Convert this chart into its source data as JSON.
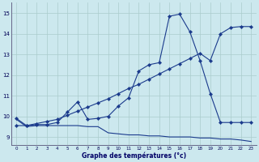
{
  "xlabel": "Graphe des températures (°c)",
  "bg_color": "#cce8ee",
  "grid_color": "#aacccc",
  "line_color": "#1a3a8c",
  "xlim_min": -0.5,
  "xlim_max": 23.5,
  "ylim_min": 8.6,
  "ylim_max": 15.5,
  "yticks": [
    9,
    10,
    11,
    12,
    13,
    14,
    15
  ],
  "xticks": [
    0,
    1,
    2,
    3,
    4,
    5,
    6,
    7,
    8,
    9,
    10,
    11,
    12,
    13,
    14,
    15,
    16,
    17,
    18,
    19,
    20,
    21,
    22,
    23
  ],
  "s1_x": [
    0,
    1,
    2,
    3,
    4,
    5,
    6,
    7,
    8,
    9,
    10,
    11,
    12,
    13,
    14,
    15,
    16,
    17,
    18,
    19,
    20,
    21,
    22,
    23
  ],
  "s1_y": [
    9.9,
    9.55,
    9.6,
    9.6,
    9.7,
    10.2,
    10.7,
    9.85,
    9.9,
    10.0,
    10.5,
    10.9,
    12.2,
    12.5,
    12.6,
    14.85,
    14.95,
    14.1,
    12.7,
    11.1,
    9.7,
    9.7,
    9.7,
    9.7
  ],
  "s2_x": [
    0,
    1,
    2,
    3,
    4,
    5,
    6,
    7,
    8,
    9,
    10,
    11,
    12,
    13,
    14,
    15,
    16,
    17,
    18,
    19,
    20,
    21,
    22,
    23
  ],
  "s2_y": [
    9.55,
    9.55,
    9.65,
    9.75,
    9.85,
    10.05,
    10.25,
    10.45,
    10.65,
    10.85,
    11.1,
    11.35,
    11.55,
    11.8,
    12.05,
    12.3,
    12.55,
    12.8,
    13.05,
    12.7,
    14.0,
    14.3,
    14.35,
    14.35
  ],
  "s3_x": [
    0,
    1,
    2,
    3,
    4,
    5,
    6,
    7,
    8,
    9,
    10,
    11,
    12,
    13,
    14,
    15,
    16,
    17,
    18,
    19,
    20,
    21,
    22,
    23
  ],
  "s3_y": [
    9.85,
    9.5,
    9.55,
    9.55,
    9.55,
    9.55,
    9.55,
    9.5,
    9.5,
    9.2,
    9.15,
    9.1,
    9.1,
    9.05,
    9.05,
    9.0,
    9.0,
    9.0,
    8.95,
    8.95,
    8.9,
    8.9,
    8.85,
    8.78
  ]
}
